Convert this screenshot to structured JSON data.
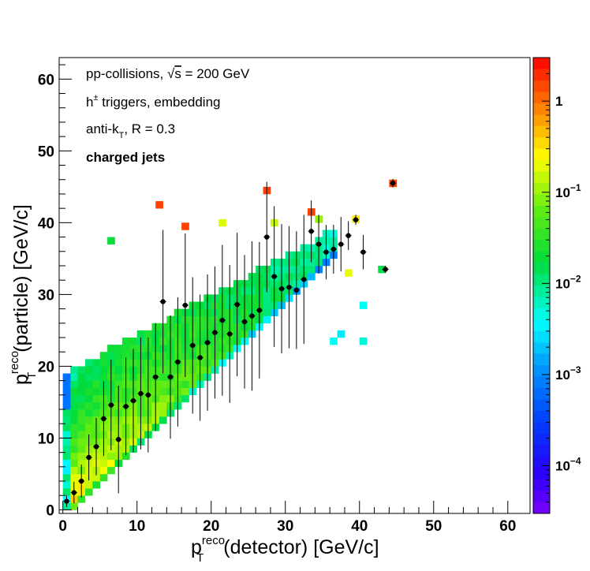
{
  "chart_data": {
    "type": "heatmap",
    "title": "",
    "xlabel": {
      "main": "p",
      "sup": "reco",
      "sub": "T",
      "rest": "(detector) [GeV/c]"
    },
    "ylabel": {
      "main": "p",
      "sup": "reco",
      "sub": "T",
      "rest": "(particle) [GeV/c]"
    },
    "xlim": [
      -0.5,
      63
    ],
    "ylim": [
      -0.5,
      63
    ],
    "bin_width": 1,
    "x_ticks": [
      0,
      10,
      20,
      30,
      40,
      50,
      60
    ],
    "y_ticks": [
      0,
      10,
      20,
      30,
      40,
      50,
      60
    ],
    "grid": false,
    "colorbar": {
      "scale": "log",
      "range": [
        3e-05,
        3
      ],
      "labels": [
        {
          "value": 1,
          "text": "1"
        },
        {
          "value": 0.1,
          "base": "10",
          "exp": "−1"
        },
        {
          "value": 0.01,
          "base": "10",
          "exp": "−2"
        },
        {
          "value": 0.001,
          "base": "10",
          "exp": "−3"
        },
        {
          "value": 0.0001,
          "base": "10",
          "exp": "−4"
        }
      ]
    },
    "annotations": {
      "line1_prefix": "pp-collisions, ",
      "line1_sqrt": "√",
      "line1_s": "s",
      "line1_suffix": " = 200 GeV",
      "line2_h": "h",
      "line2_sup": "±",
      "line2_rest": " triggers, embedding",
      "line3_pre": "anti-k",
      "line3_sub": "T",
      "line3_rest": ", R = 0.3",
      "line4": "charged jets"
    },
    "isolated_bins": [
      {
        "x": 13,
        "y": 42.5,
        "z": 1.6
      },
      {
        "x": 16.5,
        "y": 39.5,
        "z": 1.6
      },
      {
        "x": 27.5,
        "y": 44.5,
        "z": 1.6
      },
      {
        "x": 33.5,
        "y": 41.5,
        "z": 1.6
      },
      {
        "x": 44.5,
        "y": 45.5,
        "z": 1.6
      },
      {
        "x": 21.5,
        "y": 40,
        "z": 0.18
      },
      {
        "x": 28.5,
        "y": 40,
        "z": 0.15
      },
      {
        "x": 34.5,
        "y": 40.5,
        "z": 0.1
      },
      {
        "x": 39.5,
        "y": 40.5,
        "z": 0.3
      },
      {
        "x": 6.5,
        "y": 37.5,
        "z": 0.02
      },
      {
        "x": 43,
        "y": 33.5,
        "z": 0.015
      },
      {
        "x": 40.5,
        "y": 28.5,
        "z": 0.004
      },
      {
        "x": 40.5,
        "y": 23.5,
        "z": 0.005
      },
      {
        "x": 37.5,
        "y": 24.5,
        "z": 0.003
      },
      {
        "x": 36.5,
        "y": 23.5,
        "z": 0.004
      },
      {
        "x": 38.5,
        "y": 33,
        "z": 0.2
      }
    ],
    "profile": {
      "x": [
        0.5,
        1.5,
        2.5,
        3.5,
        4.5,
        5.5,
        6.5,
        7.5,
        8.5,
        9.5,
        10.5,
        11.5,
        12.5,
        13.5,
        14.5,
        15.5,
        16.5,
        17.5,
        18.5,
        19.5,
        20.5,
        21.5,
        22.5,
        23.5,
        24.5,
        25.5,
        26.5,
        27.5,
        28.5,
        29.5,
        30.5,
        31.5,
        32.5,
        33.5,
        34.5,
        35.5,
        36.5,
        37.5,
        38.5,
        39.5,
        40.5,
        43.5,
        44.5
      ],
      "y": [
        1.2,
        2.4,
        4.0,
        7.3,
        8.8,
        12.7,
        14.6,
        9.8,
        14.4,
        15.2,
        16.2,
        16.0,
        18.5,
        29.0,
        18.5,
        20.6,
        28.5,
        22.9,
        21.2,
        23.3,
        24.7,
        26.4,
        24.5,
        28.6,
        26.2,
        27.0,
        27.8,
        38.0,
        32.5,
        30.8,
        31.0,
        30.6,
        32.1,
        38.8,
        37.0,
        35.9,
        36.3,
        37.0,
        38.2,
        40.4,
        35.9,
        33.5,
        45.5
      ],
      "yerr": [
        0.8,
        1.5,
        2.3,
        3.2,
        4.0,
        5.2,
        6.3,
        7.5,
        6.8,
        7.2,
        7.8,
        8.0,
        7.5,
        10.0,
        8.6,
        9.0,
        10.0,
        9.5,
        8.8,
        9.5,
        9.2,
        10.5,
        9.6,
        10.0,
        9.3,
        10.4,
        9.5,
        7.7,
        9.8,
        9.0,
        8.5,
        8.2,
        9.0,
        4.3,
        4.1,
        3.8,
        3.4,
        3.8,
        2.0,
        0.7,
        2.4,
        0.5,
        0.6
      ]
    }
  }
}
